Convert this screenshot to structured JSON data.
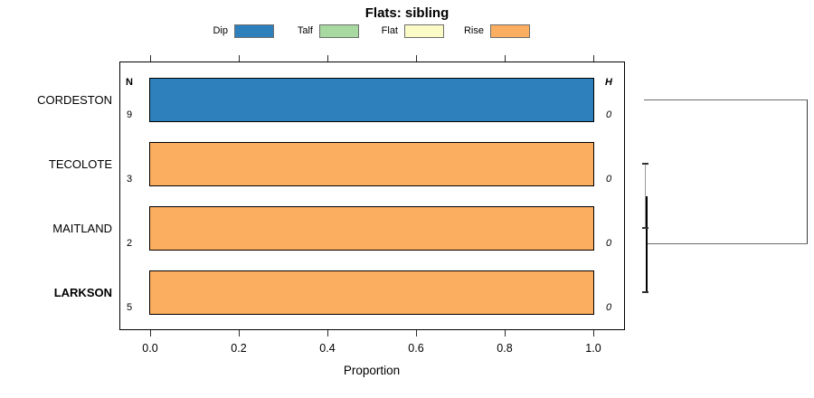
{
  "title": "Flats: sibling",
  "legend": {
    "items": [
      {
        "label": "Dip",
        "color": "#2E80BC"
      },
      {
        "label": "Talf",
        "color": "#A8D9A0"
      },
      {
        "label": "Flat",
        "color": "#FBFBC8"
      },
      {
        "label": "Rise",
        "color": "#FBAD60"
      }
    ]
  },
  "columns": {
    "n_header": "N",
    "h_header": "H"
  },
  "rows": [
    {
      "label": "CORDESTON",
      "n": "9",
      "h": "0",
      "bar_color": "#2E80BC",
      "category": "Dip",
      "proportion": 1.0,
      "bold": false
    },
    {
      "label": "TECOLOTE",
      "n": "3",
      "h": "0",
      "bar_color": "#FBAD60",
      "category": "Rise",
      "proportion": 1.0,
      "bold": false
    },
    {
      "label": "MAITLAND",
      "n": "2",
      "h": "0",
      "bar_color": "#FBAD60",
      "category": "Rise",
      "proportion": 1.0,
      "bold": false
    },
    {
      "label": "LARKSON",
      "n": "5",
      "h": "0",
      "bar_color": "#FBAD60",
      "category": "Rise",
      "proportion": 1.0,
      "bold": true
    }
  ],
  "axis": {
    "xlabel": "Proportion",
    "ticks": [
      "0.0",
      "0.2",
      "0.4",
      "0.6",
      "0.8",
      "1.0"
    ]
  },
  "chart_data": {
    "type": "bar",
    "orientation": "horizontal",
    "stacked": true,
    "title": "Flats: sibling",
    "xlabel": "Proportion",
    "ylabel": "",
    "xlim": [
      0,
      1
    ],
    "xticks": [
      0.0,
      0.2,
      0.4,
      0.6,
      0.8,
      1.0
    ],
    "grid": false,
    "legend_position": "top",
    "legend_entries": [
      "Dip",
      "Talf",
      "Flat",
      "Rise"
    ],
    "categories": [
      "CORDESTON",
      "TECOLOTE",
      "MAITLAND",
      "LARKSON"
    ],
    "series": [
      {
        "name": "Dip",
        "color": "#2E80BC",
        "values": [
          1.0,
          0.0,
          0.0,
          0.0
        ]
      },
      {
        "name": "Talf",
        "color": "#A8D9A0",
        "values": [
          0.0,
          0.0,
          0.0,
          0.0
        ]
      },
      {
        "name": "Flat",
        "color": "#FBFBC8",
        "values": [
          0.0,
          0.0,
          0.0,
          0.0
        ]
      },
      {
        "name": "Rise",
        "color": "#FBAD60",
        "values": [
          0.0,
          1.0,
          1.0,
          1.0
        ]
      }
    ],
    "n_column": {
      "header": "N",
      "values": [
        9,
        3,
        2,
        5
      ]
    },
    "h_column": {
      "header": "H",
      "values": [
        0,
        0,
        0,
        0
      ]
    },
    "dendrogram": {
      "present": true,
      "side": "right",
      "structure": "((TECOLOTE,MAITLAND),LARKSON) cluster joined with CORDESTON at root; all merge heights ~0"
    }
  }
}
